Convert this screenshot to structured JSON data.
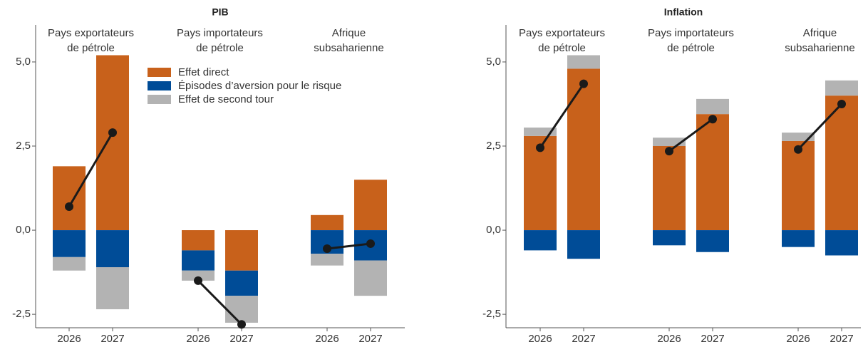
{
  "chart_data": [
    {
      "type": "stacked_bar",
      "title": "PIB",
      "groups": [
        [
          "Pays exportateurs",
          "de pétrole"
        ],
        [
          "Pays importateurs",
          "de pétrole"
        ],
        [
          "Afrique",
          "subsaharienne"
        ]
      ],
      "categories": [
        "2026",
        "2027",
        "2026",
        "2027",
        "2026",
        "2027"
      ],
      "series": [
        {
          "name": "Effet direct",
          "color": "#c8611b",
          "values": [
            1.9,
            5.2,
            -0.6,
            -1.2,
            0.45,
            1.5
          ]
        },
        {
          "name": "Épisodes d’aversion pour le risque",
          "color": "#004c97",
          "values": [
            -0.8,
            -1.1,
            -0.6,
            -0.75,
            -0.7,
            -0.9
          ]
        },
        {
          "name": "Effet de second tour",
          "color": "#b3b3b3",
          "values": [
            -0.4,
            -1.25,
            -0.3,
            -0.8,
            -0.35,
            -1.05
          ]
        }
      ],
      "line_values": [
        0.7,
        2.9,
        -1.5,
        -2.8,
        -0.55,
        -0.4
      ],
      "line_color": "#1a1a1a",
      "ylim": [
        -2.9,
        6.1
      ],
      "yticks": [
        {
          "value": -2.5,
          "label": "-2,5"
        },
        {
          "value": 0,
          "label": "0,0"
        },
        {
          "value": 2.5,
          "label": "2,5"
        },
        {
          "value": 5,
          "label": "5,0"
        }
      ],
      "legend": true
    },
    {
      "type": "stacked_bar",
      "title": "Inflation",
      "groups": [
        [
          "Pays exportateurs",
          "de pétrole"
        ],
        [
          "Pays importateurs",
          "de pétrole"
        ],
        [
          "Afrique",
          "subsaharienne"
        ]
      ],
      "categories": [
        "2026",
        "2027",
        "2026",
        "2027",
        "2026",
        "2027"
      ],
      "series": [
        {
          "color": "#c8611b",
          "values": [
            2.8,
            4.8,
            2.5,
            3.45,
            2.65,
            4.0
          ]
        },
        {
          "color": "#004c97",
          "values": [
            -0.6,
            -0.85,
            -0.45,
            -0.65,
            -0.5,
            -0.75
          ]
        },
        {
          "color": "#b3b3b3",
          "values": [
            0.25,
            0.4,
            0.25,
            0.45,
            0.25,
            0.45
          ]
        }
      ],
      "line_values": [
        2.45,
        4.35,
        2.35,
        3.3,
        2.4,
        3.75
      ],
      "line_color": "#1a1a1a",
      "ylim": [
        -2.9,
        6.1
      ],
      "yticks": [
        {
          "value": -2.5,
          "label": "-2,5"
        },
        {
          "value": 0,
          "label": "0,0"
        },
        {
          "value": 2.5,
          "label": "2,5"
        },
        {
          "value": 5,
          "label": "5,0"
        }
      ],
      "legend": false
    }
  ]
}
